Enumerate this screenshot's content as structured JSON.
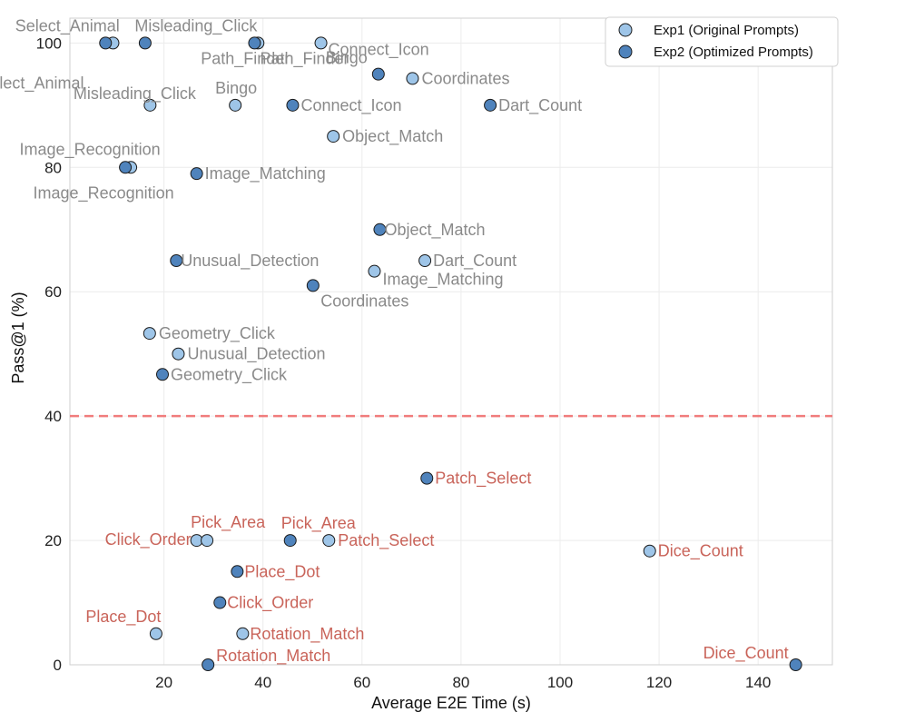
{
  "chart_data": {
    "type": "scatter",
    "xlabel": "Average E2E Time (s)",
    "ylabel": "Pass@1 (%)",
    "xlim": [
      1,
      155
    ],
    "ylim": [
      0,
      104
    ],
    "xticks": [
      20,
      40,
      60,
      80,
      100,
      120,
      140
    ],
    "yticks": [
      0,
      20,
      40,
      60,
      80,
      100
    ],
    "grid": true,
    "threshold": {
      "y": 40,
      "color": "#f07c7c",
      "style": "dashed"
    },
    "colors": {
      "exp1": "#9ec5e8",
      "exp2": "#4f83bc",
      "label_high": "#8a8a8a",
      "label_low": "#c9645a"
    },
    "legend": {
      "position": "top-right",
      "entries": [
        "Exp1 (Original Prompts)",
        "Exp2 (Optimized Prompts)"
      ]
    },
    "series": [
      {
        "name": "Exp1 (Original Prompts)",
        "points": [
          {
            "label": "Select_Animal",
            "x": 9.7,
            "y": 100
          },
          {
            "label": "Misleading_Click",
            "x": 17.2,
            "y": 90
          },
          {
            "label": "Path_Finder",
            "x": 39.0,
            "y": 100
          },
          {
            "label": "Connect_Icon",
            "x": 51.7,
            "y": 100
          },
          {
            "label": "Bingo",
            "x": 34.4,
            "y": 90
          },
          {
            "label": "Coordinates",
            "x": 70.2,
            "y": 94.3
          },
          {
            "label": "Object_Match",
            "x": 54.2,
            "y": 85
          },
          {
            "label": "Image_Recognition",
            "x": 13.3,
            "y": 80
          },
          {
            "label": "Dart_Count",
            "x": 72.7,
            "y": 65
          },
          {
            "label": "Image_Matching",
            "x": 62.5,
            "y": 63.3
          },
          {
            "label": "Geometry_Click",
            "x": 17.1,
            "y": 53.3
          },
          {
            "label": "Unusual_Detection",
            "x": 22.9,
            "y": 50
          },
          {
            "label": "Click_Order",
            "x": 26.6,
            "y": 20
          },
          {
            "label": "Pick_Area",
            "x": 28.7,
            "y": 20
          },
          {
            "label": "Patch_Select",
            "x": 53.3,
            "y": 20
          },
          {
            "label": "Dice_Count",
            "x": 118.1,
            "y": 18.3
          },
          {
            "label": "Place_Dot",
            "x": 18.4,
            "y": 5
          },
          {
            "label": "Rotation_Match",
            "x": 35.9,
            "y": 5
          }
        ]
      },
      {
        "name": "Exp2 (Optimized Prompts)",
        "points": [
          {
            "label": "Select_Animal",
            "x": 8.2,
            "y": 100
          },
          {
            "label": "Misleading_Click",
            "x": 16.2,
            "y": 100
          },
          {
            "label": "Path_Finder",
            "x": 38.3,
            "y": 100
          },
          {
            "label": "Bingo",
            "x": 63.3,
            "y": 95
          },
          {
            "label": "Connect_Icon",
            "x": 46.0,
            "y": 90
          },
          {
            "label": "Dart_Count",
            "x": 85.9,
            "y": 90
          },
          {
            "label": "Image_Recognition",
            "x": 12.2,
            "y": 80
          },
          {
            "label": "Image_Matching",
            "x": 26.6,
            "y": 79
          },
          {
            "label": "Object_Match",
            "x": 63.6,
            "y": 70
          },
          {
            "label": "Unusual_Detection",
            "x": 22.5,
            "y": 65
          },
          {
            "label": "Coordinates",
            "x": 50.1,
            "y": 61
          },
          {
            "label": "Geometry_Click",
            "x": 19.7,
            "y": 46.7
          },
          {
            "label": "Patch_Select",
            "x": 73.1,
            "y": 30
          },
          {
            "label": "Pick_Area",
            "x": 45.5,
            "y": 20
          },
          {
            "label": "Place_Dot",
            "x": 34.8,
            "y": 15
          },
          {
            "label": "Click_Order",
            "x": 31.3,
            "y": 10
          },
          {
            "label": "Rotation_Match",
            "x": 28.9,
            "y": 0
          },
          {
            "label": "Dice_Count",
            "x": 147.6,
            "y": 0
          }
        ]
      }
    ]
  }
}
